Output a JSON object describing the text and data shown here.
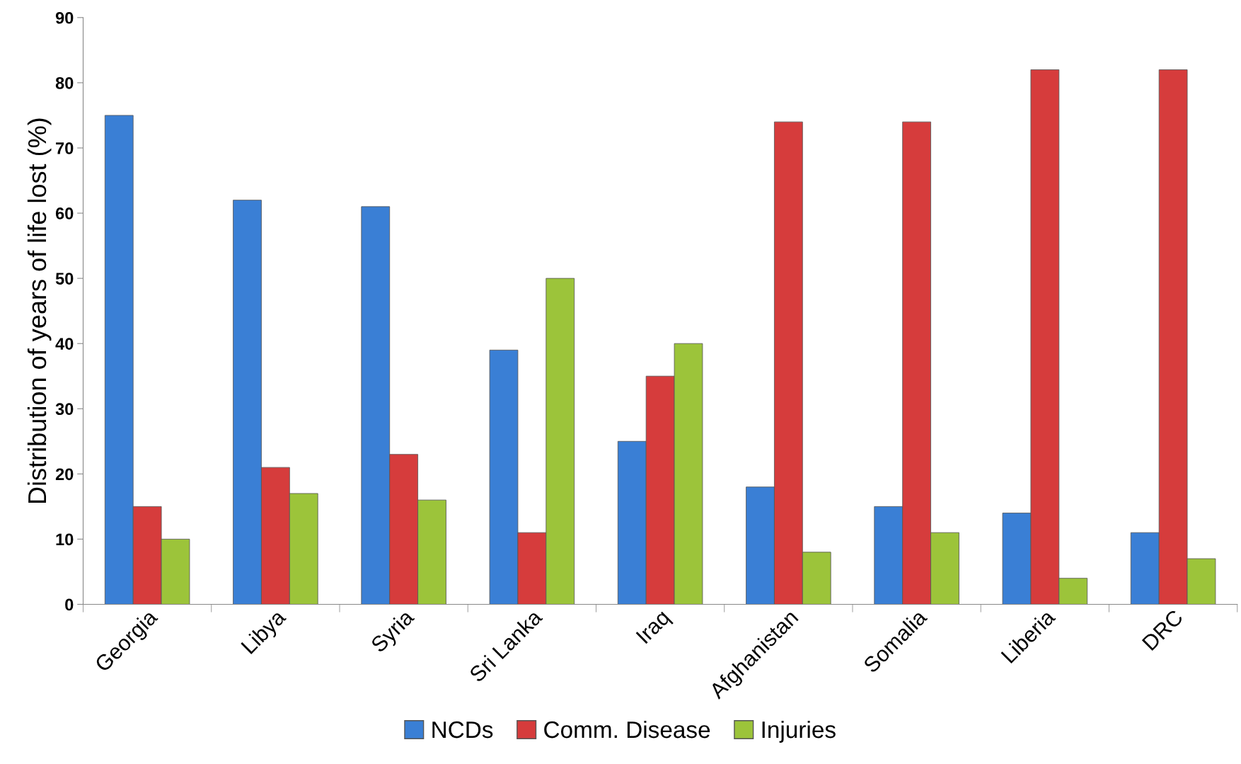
{
  "chart_data": {
    "type": "bar",
    "ylabel": "Distribution of years of life lost (%)",
    "categories": [
      "Georgia",
      "Libya",
      "Syria",
      "Sri Lanka",
      "Iraq",
      "Afghanistan",
      "Somalia",
      "Liberia",
      "DRC"
    ],
    "series": [
      {
        "name": "NCDs",
        "color": "#3a7fd5",
        "values": [
          75,
          62,
          61,
          39,
          25,
          18,
          15,
          14,
          11
        ]
      },
      {
        "name": "Comm. Disease",
        "color": "#d63c3c",
        "values": [
          15,
          21,
          23,
          11,
          35,
          74,
          74,
          82,
          82
        ]
      },
      {
        "name": "Injuries",
        "color": "#9cc43a",
        "values": [
          10,
          17,
          16,
          50,
          40,
          8,
          11,
          4,
          7
        ]
      }
    ],
    "ylim": [
      0,
      90
    ],
    "yticks": [
      0,
      10,
      20,
      30,
      40,
      50,
      60,
      70,
      80,
      90
    ],
    "grid": false,
    "legend": "bottom"
  }
}
